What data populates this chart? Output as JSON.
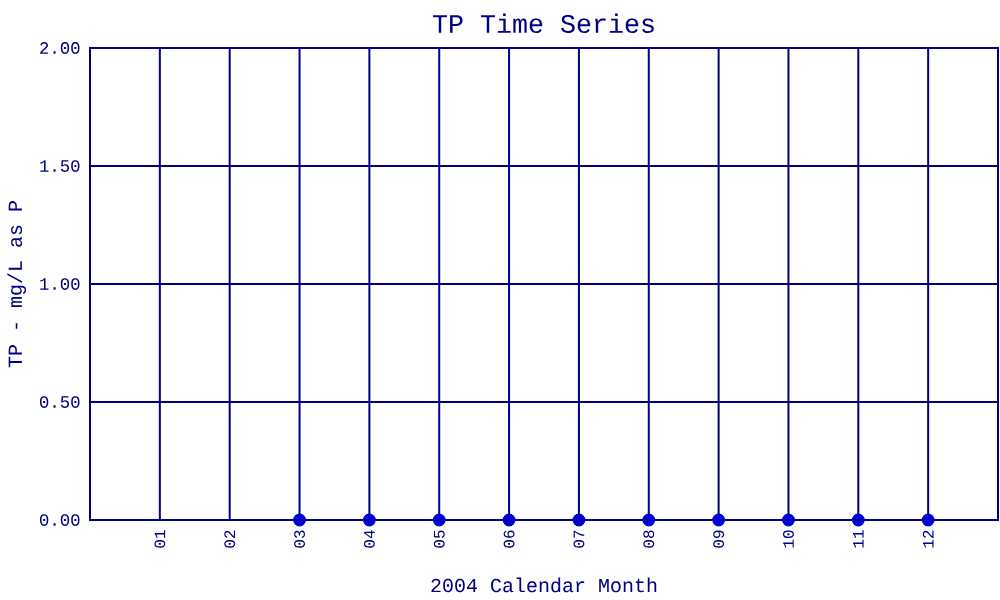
{
  "chart_data": {
    "type": "scatter",
    "title": "TP Time Series",
    "xlabel": "2004 Calendar Month",
    "ylabel": "TP - mg/L as P",
    "categories": [
      "01",
      "02",
      "03",
      "04",
      "05",
      "06",
      "07",
      "08",
      "09",
      "10",
      "11",
      "12"
    ],
    "series": [
      {
        "color": "#0000cc",
        "values": [
          null,
          null,
          0,
          0,
          0,
          0,
          0,
          0,
          0,
          0,
          0,
          0
        ]
      }
    ],
    "ylim": [
      0,
      2
    ],
    "yticks": [
      {
        "value": 0,
        "label": "0.00"
      },
      {
        "value": 0.5,
        "label": "0.50"
      },
      {
        "value": 1,
        "label": "1.00"
      },
      {
        "value": 1.5,
        "label": "1.50"
      },
      {
        "value": 2,
        "label": "2.00"
      }
    ],
    "grid": true
  }
}
